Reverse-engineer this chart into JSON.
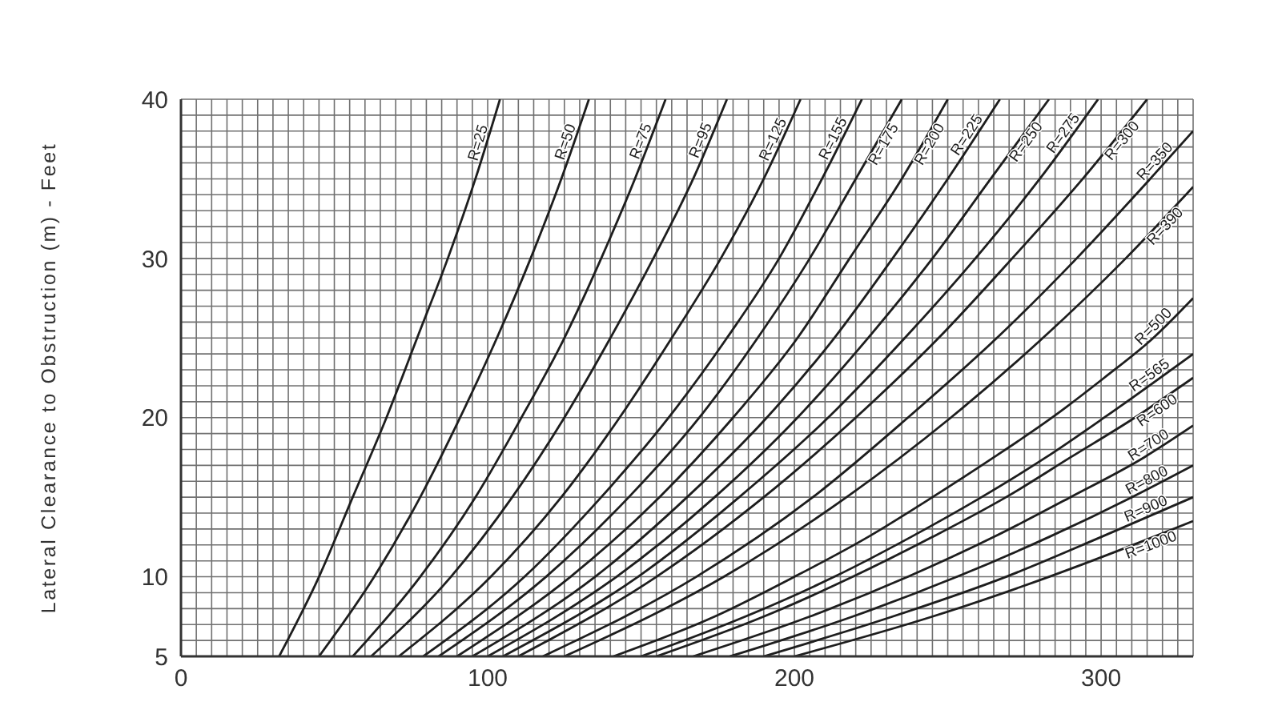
{
  "chart_data": {
    "type": "line",
    "ylabel": "Lateral Clearance to Obstruction (m) - Feet",
    "xlim": [
      0,
      330
    ],
    "ylim": [
      5,
      40
    ],
    "xticks": [
      0,
      {
        "value": 5,
        "label": null
      },
      {
        "value": 10,
        "label": null
      },
      {
        "value": 15,
        "label": null
      },
      {
        "value": 20,
        "label": null
      },
      {
        "value": 25,
        "label": null
      },
      {
        "value": 30,
        "label": null
      },
      {
        "value": 35,
        "label": null
      },
      {
        "value": 40,
        "label": null
      },
      {
        "value": 45,
        "label": null
      },
      {
        "value": 50,
        "label": null
      },
      {
        "value": 55,
        "label": null
      },
      {
        "value": 60,
        "label": null
      },
      {
        "value": 65,
        "label": null
      },
      {
        "value": 70,
        "label": null
      },
      {
        "value": 75,
        "label": null
      },
      {
        "value": 80,
        "label": null
      },
      {
        "value": 85,
        "label": null
      },
      {
        "value": 90,
        "label": null
      },
      {
        "value": 95,
        "label": null
      },
      100,
      {
        "value": 105,
        "label": null
      },
      {
        "value": 110,
        "label": null
      },
      {
        "value": 115,
        "label": null
      },
      {
        "value": 120,
        "label": null
      },
      {
        "value": 125,
        "label": null
      },
      {
        "value": 130,
        "label": null
      },
      {
        "value": 135,
        "label": null
      },
      {
        "value": 140,
        "label": null
      },
      {
        "value": 145,
        "label": null
      },
      {
        "value": 150,
        "label": null
      },
      {
        "value": 155,
        "label": null
      },
      {
        "value": 160,
        "label": null
      },
      {
        "value": 165,
        "label": null
      },
      {
        "value": 170,
        "label": null
      },
      {
        "value": 175,
        "label": null
      },
      {
        "value": 180,
        "label": null
      },
      {
        "value": 185,
        "label": null
      },
      {
        "value": 190,
        "label": null
      },
      {
        "value": 195,
        "label": null
      },
      200,
      {
        "value": 205,
        "label": null
      },
      {
        "value": 210,
        "label": null
      },
      {
        "value": 215,
        "label": null
      },
      {
        "value": 220,
        "label": null
      },
      {
        "value": 225,
        "label": null
      },
      {
        "value": 230,
        "label": null
      },
      {
        "value": 235,
        "label": null
      },
      {
        "value": 240,
        "label": null
      },
      {
        "value": 245,
        "label": null
      },
      {
        "value": 250,
        "label": null
      },
      {
        "value": 255,
        "label": null
      },
      {
        "value": 260,
        "label": null
      },
      {
        "value": 265,
        "label": null
      },
      {
        "value": 270,
        "label": null
      },
      {
        "value": 275,
        "label": null
      },
      {
        "value": 280,
        "label": null
      },
      {
        "value": 285,
        "label": null
      },
      {
        "value": 290,
        "label": null
      },
      {
        "value": 295,
        "label": null
      },
      300,
      {
        "value": 305,
        "label": null
      },
      {
        "value": 310,
        "label": null
      },
      {
        "value": 315,
        "label": null
      },
      {
        "value": 320,
        "label": null
      },
      {
        "value": 325,
        "label": null
      },
      {
        "value": 330,
        "label": null
      }
    ],
    "yticks": [
      5,
      {
        "value": 6,
        "label": null
      },
      {
        "value": 7,
        "label": null
      },
      {
        "value": 8,
        "label": null
      },
      {
        "value": 9,
        "label": null
      },
      10,
      {
        "value": 11,
        "label": null
      },
      {
        "value": 12,
        "label": null
      },
      {
        "value": 13,
        "label": null
      },
      {
        "value": 14,
        "label": null
      },
      {
        "value": 15,
        "label": null
      },
      {
        "value": 16,
        "label": null
      },
      {
        "value": 17,
        "label": null
      },
      {
        "value": 18,
        "label": null
      },
      {
        "value": 19,
        "label": null
      },
      20,
      {
        "value": 21,
        "label": null
      },
      {
        "value": 22,
        "label": null
      },
      {
        "value": 23,
        "label": null
      },
      {
        "value": 24,
        "label": null
      },
      {
        "value": 25,
        "label": null
      },
      {
        "value": 26,
        "label": null
      },
      {
        "value": 27,
        "label": null
      },
      {
        "value": 28,
        "label": null
      },
      {
        "value": 29,
        "label": null
      },
      30,
      {
        "value": 31,
        "label": null
      },
      {
        "value": 32,
        "label": null
      },
      {
        "value": 33,
        "label": null
      },
      {
        "value": 34,
        "label": null
      },
      {
        "value": 35,
        "label": null
      },
      {
        "value": 36,
        "label": null
      },
      {
        "value": 37,
        "label": null
      },
      {
        "value": 38,
        "label": null
      },
      {
        "value": 39,
        "label": null
      },
      40
    ],
    "grid": true,
    "marker": "none",
    "line_style": "solid",
    "series": [
      {
        "name": "R=25",
        "color": "#1e1e1e",
        "x": [
          32,
          45,
          56,
          67,
          77,
          87,
          96,
          104
        ],
        "values": [
          5,
          10,
          15,
          20,
          25,
          30,
          35,
          40
        ]
      },
      {
        "name": "R=50",
        "color": "#1e1e1e",
        "x": [
          45,
          63,
          78,
          91,
          103,
          114,
          124,
          133
        ],
        "values": [
          5,
          10,
          15,
          20,
          25,
          30,
          35,
          40
        ]
      },
      {
        "name": "R=75",
        "color": "#1e1e1e",
        "x": [
          56,
          78,
          96,
          111,
          125,
          137,
          148,
          158
        ],
        "values": [
          5,
          10,
          15,
          20,
          25,
          30,
          35,
          40
        ]
      },
      {
        "name": "R=95",
        "color": "#1e1e1e",
        "x": [
          62,
          88,
          108,
          125,
          140,
          154,
          167,
          178
        ],
        "values": [
          5,
          10,
          15,
          20,
          25,
          30,
          35,
          40
        ]
      },
      {
        "name": "R=125",
        "color": "#1e1e1e",
        "x": [
          71,
          101,
          124,
          143,
          160,
          176,
          190,
          202
        ],
        "values": [
          5,
          10,
          15,
          20,
          25,
          30,
          35,
          40
        ]
      },
      {
        "name": "R=155",
        "color": "#1e1e1e",
        "x": [
          79,
          112,
          137,
          159,
          178,
          195,
          209,
          222
        ],
        "values": [
          5,
          10,
          15,
          20,
          25,
          30,
          35,
          40
        ]
      },
      {
        "name": "R=175",
        "color": "#1e1e1e",
        "x": [
          84,
          119,
          146,
          169,
          188,
          205,
          220,
          235
        ],
        "values": [
          5,
          10,
          15,
          20,
          25,
          30,
          35,
          40
        ]
      },
      {
        "name": "R=200",
        "color": "#1e1e1e",
        "x": [
          90,
          127,
          156,
          180,
          201,
          218,
          235,
          250
        ],
        "values": [
          5,
          10,
          15,
          20,
          25,
          30,
          35,
          40
        ]
      },
      {
        "name": "R=225",
        "color": "#1e1e1e",
        "x": [
          95,
          135,
          165,
          191,
          213,
          232,
          250,
          267
        ],
        "values": [
          5,
          10,
          15,
          20,
          25,
          30,
          35,
          40
        ]
      },
      {
        "name": "R=250",
        "color": "#1e1e1e",
        "x": [
          100,
          142,
          174,
          201,
          224,
          245,
          264,
          283
        ],
        "values": [
          5,
          10,
          15,
          20,
          25,
          30,
          35,
          40
        ]
      },
      {
        "name": "R=275",
        "color": "#1e1e1e",
        "x": [
          105,
          149,
          182,
          211,
          236,
          259,
          280,
          299
        ],
        "values": [
          5,
          10,
          15,
          20,
          25,
          30,
          35,
          40
        ]
      },
      {
        "name": "R=300",
        "color": "#1e1e1e",
        "x": [
          110,
          155,
          190,
          220,
          247,
          271,
          294,
          315
        ],
        "values": [
          5,
          10,
          15,
          20,
          25,
          30,
          35,
          40
        ]
      },
      {
        "name": "R=350",
        "color": "#1e1e1e",
        "x": [
          118,
          168,
          206,
          237,
          266,
          292,
          316,
          330
        ],
        "values": [
          5,
          10,
          15,
          20,
          25,
          30,
          35,
          38
        ]
      },
      {
        "name": "R=390",
        "color": "#1e1e1e",
        "x": [
          125,
          177,
          217,
          251,
          281,
          308,
          330
        ],
        "values": [
          5,
          10,
          15,
          20,
          25,
          30,
          34.5
        ]
      },
      {
        "name": "R=500",
        "color": "#1e1e1e",
        "x": [
          141,
          174,
          200,
          224,
          245,
          265,
          284,
          301,
          317,
          330
        ],
        "values": [
          5,
          7.5,
          10,
          12.5,
          15,
          17.5,
          20,
          22.5,
          25,
          27.5
        ]
      },
      {
        "name": "R=565",
        "color": "#1e1e1e",
        "x": [
          150,
          184,
          213,
          238,
          261,
          282,
          301,
          330
        ],
        "values": [
          5,
          7.5,
          10,
          12.5,
          15,
          17.5,
          20,
          24
        ]
      },
      {
        "name": "R=600",
        "color": "#1e1e1e",
        "x": [
          155,
          190,
          219,
          245,
          269,
          290,
          311,
          330
        ],
        "values": [
          5,
          7.5,
          10,
          12.5,
          15,
          17.5,
          20,
          22.5
        ]
      },
      {
        "name": "R=700",
        "color": "#1e1e1e",
        "x": [
          167,
          205,
          237,
          265,
          290,
          314,
          330
        ],
        "values": [
          5,
          7.5,
          10,
          12.5,
          15,
          17.5,
          19.5
        ]
      },
      {
        "name": "R=800",
        "color": "#1e1e1e",
        "x": [
          179,
          219,
          253,
          283,
          310,
          330
        ],
        "values": [
          5,
          7.5,
          10,
          12.5,
          15,
          17
        ]
      },
      {
        "name": "R=900",
        "color": "#1e1e1e",
        "x": [
          190,
          232,
          269,
          300,
          330
        ],
        "values": [
          5,
          7.5,
          10,
          12.5,
          15
        ]
      },
      {
        "name": "R=1000",
        "color": "#1e1e1e",
        "x": [
          200,
          245,
          283,
          317,
          330
        ],
        "values": [
          5,
          7.5,
          10,
          12.5,
          13.5
        ]
      }
    ]
  }
}
